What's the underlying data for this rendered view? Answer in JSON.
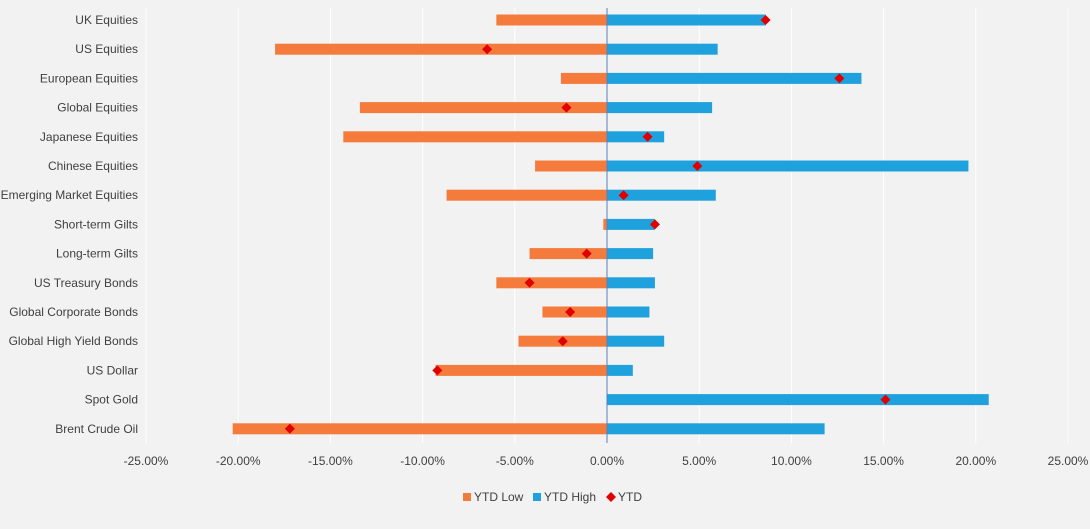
{
  "chart_data": {
    "type": "bar",
    "orientation": "horizontal",
    "categories": [
      "UK Equities",
      "US Equities",
      "European Equities",
      "Global Equities",
      "Japanese Equities",
      "Chinese Equities",
      "Emerging Market Equities",
      "Short-term Gilts",
      "Long-term Gilts",
      "US Treasury Bonds",
      "Global Corporate Bonds",
      "Global High Yield Bonds",
      "US Dollar ",
      "Spot Gold",
      "Brent Crude Oil"
    ],
    "series": [
      {
        "name": "YTD Low",
        "kind": "bar",
        "color": "#f47b3b",
        "values": [
          -6.0,
          -18.0,
          -2.5,
          -13.4,
          -14.3,
          -3.9,
          -8.7,
          -0.2,
          -4.2,
          -6.0,
          -3.5,
          -4.8,
          -9.3,
          0.0,
          -20.3
        ]
      },
      {
        "name": "YTD High",
        "kind": "bar",
        "color": "#1ea1dc",
        "values": [
          8.6,
          6.0,
          13.8,
          5.7,
          3.1,
          19.6,
          5.9,
          2.6,
          2.5,
          2.6,
          2.3,
          3.1,
          1.4,
          20.7,
          11.8
        ]
      },
      {
        "name": "YTD",
        "kind": "marker",
        "color": "#e00000",
        "values": [
          8.6,
          -6.5,
          12.6,
          -2.2,
          2.2,
          4.9,
          0.9,
          2.6,
          -1.1,
          -4.2,
          -2.0,
          -2.4,
          -9.2,
          15.1,
          -17.2
        ]
      }
    ],
    "xlim": [
      -25,
      25
    ],
    "x_ticks": [
      -25,
      -20,
      -15,
      -10,
      -5,
      0,
      5,
      10,
      15,
      20,
      25
    ],
    "x_tick_labels": [
      "-25.00%",
      "-20.00%",
      "-15.00%",
      "-10.00%",
      "-5.00%",
      "0.00%",
      "5.00%",
      "10.00%",
      "15.00%",
      "20.00%",
      "25.00%"
    ],
    "title": "",
    "xlabel": "",
    "ylabel": "",
    "grid": true,
    "legend_position": "bottom"
  }
}
